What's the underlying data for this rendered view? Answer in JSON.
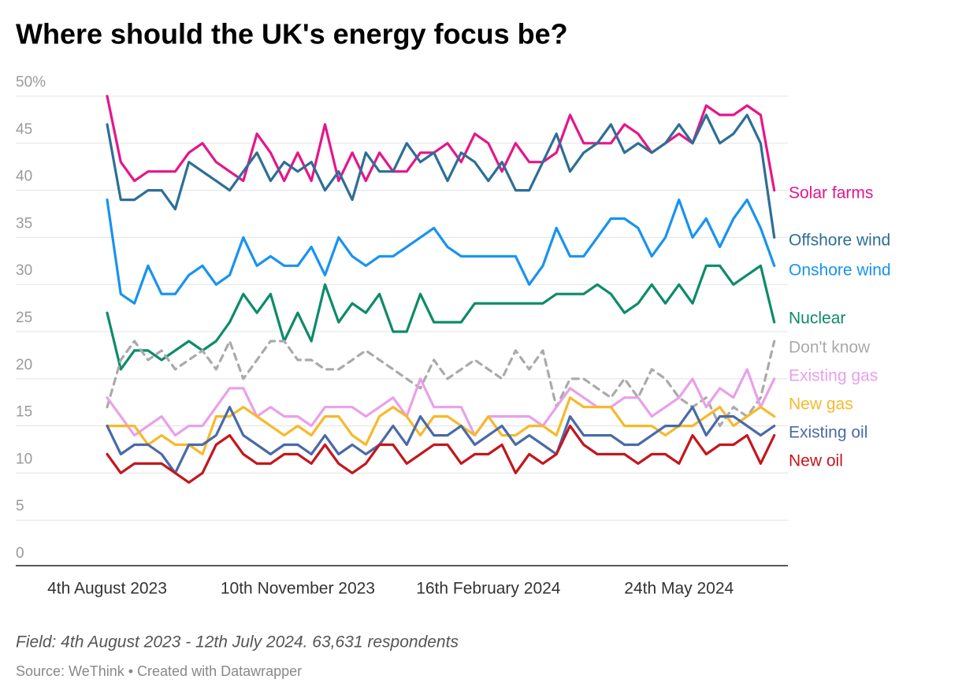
{
  "chart_data": {
    "type": "line",
    "title": "Where should the UK's energy focus be?",
    "subtitle": "Field: 4th August 2023 - 12th July 2024. 63,631 respondents",
    "source": "Source: WeThink • Created with Datawrapper",
    "x": [
      "2023-08-04",
      "2023-08-11",
      "2023-08-18",
      "2023-08-25",
      "2023-09-01",
      "2023-09-08",
      "2023-09-15",
      "2023-09-22",
      "2023-09-29",
      "2023-10-06",
      "2023-10-13",
      "2023-10-20",
      "2023-10-27",
      "2023-11-03",
      "2023-11-10",
      "2023-11-17",
      "2023-11-24",
      "2023-12-01",
      "2023-12-08",
      "2023-12-15",
      "2023-12-22",
      "2023-12-29",
      "2024-01-05",
      "2024-01-12",
      "2024-01-19",
      "2024-01-26",
      "2024-02-02",
      "2024-02-09",
      "2024-02-16",
      "2024-02-23",
      "2024-03-01",
      "2024-03-08",
      "2024-03-15",
      "2024-03-22",
      "2024-03-29",
      "2024-04-05",
      "2024-04-12",
      "2024-04-19",
      "2024-04-26",
      "2024-05-03",
      "2024-05-10",
      "2024-05-17",
      "2024-05-24",
      "2024-05-31",
      "2024-06-07",
      "2024-06-14",
      "2024-06-21",
      "2024-06-28",
      "2024-07-05",
      "2024-07-12"
    ],
    "xlim": [
      "2023-06-18",
      "2024-07-19"
    ],
    "xticks": [
      {
        "value": "2023-08-04",
        "label": "4th August 2023"
      },
      {
        "value": "2023-11-10",
        "label": "10th November 2023"
      },
      {
        "value": "2024-02-16",
        "label": "16th February 2024"
      },
      {
        "value": "2024-05-24",
        "label": "24th May 2024"
      }
    ],
    "ylim": [
      0,
      50
    ],
    "yticks": [
      0,
      5,
      10,
      15,
      20,
      25,
      30,
      35,
      40,
      45,
      {
        "value": 50,
        "label": "50%"
      }
    ],
    "grid": true,
    "series": [
      {
        "name": "Solar farms",
        "color": "#e5168a",
        "values": [
          50,
          43,
          41,
          42,
          42,
          42,
          44,
          45,
          43,
          42,
          41,
          46,
          44,
          41,
          44,
          41,
          47,
          41,
          44,
          41,
          44,
          42,
          42,
          44,
          44,
          45,
          43,
          46,
          45,
          42,
          45,
          43,
          43,
          44,
          48,
          45,
          45,
          45,
          47,
          46,
          44,
          45,
          46,
          45,
          49,
          48,
          48,
          49,
          48,
          40
        ]
      },
      {
        "name": "Offshore wind",
        "color": "#2c6f96",
        "values": [
          47,
          39,
          39,
          40,
          40,
          38,
          43,
          42,
          41,
          40,
          42,
          44,
          41,
          43,
          42,
          43,
          40,
          42,
          39,
          44,
          42,
          42,
          45,
          43,
          44,
          41,
          44,
          43,
          41,
          43,
          40,
          40,
          43,
          46,
          42,
          44,
          45,
          47,
          44,
          45,
          44,
          45,
          47,
          45,
          48,
          45,
          46,
          48,
          45,
          35
        ]
      },
      {
        "name": "Onshore wind",
        "color": "#1893f0",
        "values": [
          39,
          29,
          28,
          32,
          29,
          29,
          31,
          32,
          30,
          31,
          35,
          32,
          33,
          32,
          32,
          34,
          31,
          35,
          33,
          32,
          33,
          33,
          34,
          35,
          36,
          34,
          33,
          33,
          33,
          33,
          33,
          30,
          32,
          36,
          33,
          33,
          35,
          37,
          37,
          36,
          33,
          35,
          39,
          35,
          37,
          34,
          37,
          39,
          36,
          32
        ]
      },
      {
        "name": "Nuclear",
        "color": "#0d8b6a",
        "values": [
          27,
          21,
          23,
          23,
          22,
          23,
          24,
          23,
          24,
          26,
          29,
          27,
          29,
          24,
          27,
          24,
          30,
          26,
          28,
          27,
          29,
          25,
          25,
          29,
          26,
          26,
          26,
          28,
          28,
          28,
          28,
          28,
          28,
          29,
          29,
          29,
          30,
          29,
          27,
          28,
          30,
          28,
          30,
          28,
          32,
          32,
          30,
          31,
          32,
          26
        ]
      },
      {
        "name": "Don't know",
        "color": "#aaaaaa",
        "style": "dashed",
        "values": [
          17,
          22,
          24,
          22,
          23,
          21,
          22,
          23,
          21,
          24,
          20,
          22,
          24,
          24,
          22,
          22,
          21,
          21,
          22,
          23,
          22,
          21,
          20,
          19,
          22,
          20,
          21,
          22,
          21,
          20,
          23,
          21,
          23,
          17,
          20,
          20,
          19,
          18,
          20,
          18,
          21,
          20,
          18,
          17,
          18,
          15,
          17,
          16,
          18,
          24
        ]
      },
      {
        "name": "Existing gas",
        "color": "#e9a0e9",
        "values": [
          18,
          16,
          14,
          15,
          16,
          14,
          15,
          15,
          17,
          19,
          19,
          16,
          17,
          16,
          16,
          15,
          17,
          17,
          17,
          16,
          17,
          18,
          16,
          20,
          17,
          17,
          17,
          14,
          16,
          16,
          16,
          16,
          15,
          17,
          19,
          18,
          17,
          17,
          18,
          18,
          16,
          17,
          18,
          20,
          17,
          19,
          18,
          21,
          17,
          20
        ]
      },
      {
        "name": "New gas",
        "color": "#f6b92b",
        "values": [
          15,
          15,
          15,
          13,
          14,
          13,
          13,
          12,
          16,
          16,
          17,
          16,
          15,
          14,
          15,
          14,
          16,
          16,
          14,
          13,
          16,
          17,
          16,
          14,
          16,
          16,
          15,
          14,
          16,
          14,
          14,
          15,
          15,
          14,
          18,
          17,
          17,
          17,
          15,
          15,
          15,
          14,
          15,
          15,
          16,
          17,
          15,
          16,
          17,
          16
        ]
      },
      {
        "name": "Existing oil",
        "color": "#4a6aa8",
        "values": [
          15,
          12,
          13,
          13,
          12,
          10,
          13,
          13,
          14,
          17,
          14,
          13,
          12,
          13,
          13,
          12,
          14,
          12,
          13,
          12,
          13,
          15,
          13,
          16,
          14,
          14,
          15,
          13,
          14,
          15,
          13,
          14,
          13,
          12,
          16,
          14,
          14,
          14,
          13,
          13,
          14,
          15,
          15,
          17,
          14,
          16,
          16,
          15,
          14,
          15
        ]
      },
      {
        "name": "New oil",
        "color": "#c3171e",
        "values": [
          12,
          10,
          11,
          11,
          11,
          10,
          9,
          10,
          13,
          14,
          12,
          11,
          11,
          12,
          12,
          11,
          13,
          11,
          10,
          11,
          13,
          13,
          11,
          12,
          13,
          13,
          11,
          12,
          12,
          13,
          10,
          12,
          11,
          12,
          15,
          13,
          12,
          12,
          12,
          11,
          12,
          12,
          11,
          14,
          12,
          13,
          13,
          14,
          11,
          14
        ]
      }
    ]
  }
}
